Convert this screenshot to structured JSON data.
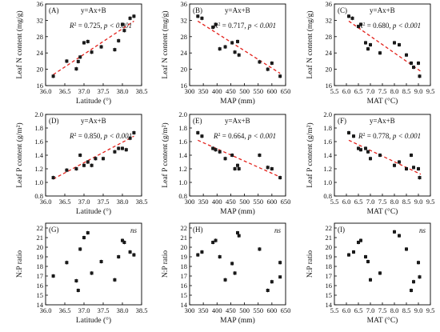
{
  "figure": {
    "colors": {
      "points": "#1a1a1a",
      "fit": "#e3221c",
      "axis": "#000000"
    }
  },
  "chart_data": [
    {
      "type": "scatter",
      "panel": "(A)",
      "equation": "y=Ax+B",
      "r2": "0.725",
      "p": "p < 0.001",
      "fit": true,
      "xlabel": "Latitude (°)",
      "ylabel": "Leaf N content (mg/g)",
      "xlim": [
        36.0,
        38.5
      ],
      "ylim": [
        16,
        36
      ],
      "xticks": [
        "36.0",
        "36.5",
        "37.0",
        "37.5",
        "38.0",
        "38.5"
      ],
      "yticks": [
        "16",
        "20",
        "24",
        "28",
        "32",
        "36"
      ],
      "x": [
        36.2,
        36.55,
        36.8,
        36.85,
        36.9,
        37.0,
        37.1,
        37.2,
        37.45,
        37.8,
        37.9,
        38.0,
        38.05,
        38.2,
        38.3
      ],
      "y": [
        18.3,
        22.0,
        20.1,
        21.9,
        23.0,
        26.5,
        26.8,
        24.2,
        25.5,
        24.8,
        27.0,
        31.0,
        29.5,
        32.5,
        33.0
      ],
      "fit_line": [
        [
          36.2,
          18.7
        ],
        [
          38.3,
          31.8
        ]
      ]
    },
    {
      "type": "scatter",
      "panel": "(B)",
      "equation": "y=Ax+B",
      "r2": "0.717",
      "p": "p < 0.001",
      "fit": true,
      "xlabel": "MAP (mm)",
      "ylabel": "Leaf N content (mg/g)",
      "xlim": [
        300,
        650
      ],
      "ylim": [
        16,
        36
      ],
      "xticks": [
        "300",
        "350",
        "400",
        "450",
        "500",
        "550",
        "600",
        "650"
      ],
      "yticks": [
        "16",
        "20",
        "24",
        "28",
        "32",
        "36"
      ],
      "x": [
        330,
        345,
        385,
        395,
        410,
        430,
        455,
        465,
        475,
        480,
        555,
        585,
        600,
        630
      ],
      "y": [
        33.0,
        32.5,
        30.3,
        31.0,
        25.0,
        25.5,
        26.5,
        24.2,
        26.8,
        23.5,
        21.8,
        20.0,
        21.5,
        18.3
      ],
      "fit_line": [
        [
          330,
          31.8
        ],
        [
          630,
          19.0
        ]
      ]
    },
    {
      "type": "scatter",
      "panel": "(C)",
      "equation": "y=Ax+B",
      "r2": "0.680",
      "p": "p < 0.001",
      "fit": true,
      "xlabel": "MAT (°C)",
      "ylabel": "Leaf N content (mg/g)",
      "xlim": [
        5.5,
        9.5
      ],
      "ylim": [
        16,
        36
      ],
      "xticks": [
        "5.5",
        "6.0",
        "6.5",
        "7.0",
        "7.5",
        "8.0",
        "8.5",
        "9.0",
        "9.5"
      ],
      "yticks": [
        "16",
        "20",
        "24",
        "28",
        "32",
        "36"
      ],
      "x": [
        6.1,
        6.25,
        6.5,
        6.6,
        6.8,
        6.9,
        7.0,
        7.4,
        8.0,
        8.2,
        8.5,
        8.7,
        8.8,
        9.0,
        9.05
      ],
      "y": [
        33.0,
        32.5,
        30.5,
        31.0,
        26.5,
        25.0,
        26.0,
        24.0,
        26.5,
        26.0,
        23.5,
        21.5,
        20.5,
        21.5,
        18.3
      ],
      "fit_line": [
        [
          6.1,
          31.8
        ],
        [
          9.1,
          19.5
        ]
      ]
    },
    {
      "type": "scatter",
      "panel": "(D)",
      "equation": "y=Ax+B",
      "r2": "0.850",
      "p": "p < 0.001",
      "fit": true,
      "xlabel": "Latitude (°)",
      "ylabel": "Leaf P content (g/m²)",
      "xlim": [
        36.0,
        38.5
      ],
      "ylim": [
        0.8,
        2.0
      ],
      "xticks": [
        "36.0",
        "36.5",
        "37.0",
        "37.5",
        "38.0",
        "38.5"
      ],
      "yticks": [
        "0.8",
        "1.0",
        "1.2",
        "1.4",
        "1.6",
        "1.8",
        "2.0"
      ],
      "x": [
        36.2,
        36.55,
        36.8,
        36.9,
        37.0,
        37.1,
        37.2,
        37.3,
        37.5,
        37.8,
        37.9,
        38.0,
        38.1,
        38.2,
        38.3
      ],
      "y": [
        1.07,
        1.18,
        1.2,
        1.4,
        1.25,
        1.3,
        1.25,
        1.35,
        1.35,
        1.45,
        1.5,
        1.5,
        1.48,
        1.65,
        1.73
      ],
      "fit_line": [
        [
          36.2,
          1.05
        ],
        [
          38.3,
          1.68
        ]
      ]
    },
    {
      "type": "scatter",
      "panel": "(E)",
      "equation": "y=Ax+B",
      "r2": "0.664",
      "p": "p < 0.001",
      "fit": true,
      "xlabel": "MAP (mm)",
      "ylabel": "Leaf P content (g/m²)",
      "xlim": [
        300,
        650
      ],
      "ylim": [
        0.8,
        2.0
      ],
      "xticks": [
        "300",
        "350",
        "400",
        "450",
        "500",
        "550",
        "600",
        "650"
      ],
      "yticks": [
        "0.8",
        "1.0",
        "1.2",
        "1.4",
        "1.6",
        "1.8",
        "2.0"
      ],
      "x": [
        330,
        345,
        385,
        395,
        410,
        430,
        455,
        465,
        475,
        480,
        555,
        585,
        600,
        630
      ],
      "y": [
        1.73,
        1.68,
        1.5,
        1.48,
        1.45,
        1.35,
        1.4,
        1.2,
        1.25,
        1.2,
        1.4,
        1.22,
        1.2,
        1.07
      ],
      "fit_line": [
        [
          330,
          1.62
        ],
        [
          630,
          1.08
        ]
      ]
    },
    {
      "type": "scatter",
      "panel": "(F)",
      "equation": "y=Ax+B",
      "r2": "0.778",
      "p": "p < 0.001",
      "fit": true,
      "xlabel": "MAT (°C)",
      "ylabel": "Leaf P content (g/m²)",
      "xlim": [
        5.5,
        9.5
      ],
      "ylim": [
        0.8,
        2.0
      ],
      "xticks": [
        "5.5",
        "6.0",
        "6.5",
        "7.0",
        "7.5",
        "8.0",
        "8.5",
        "9.0",
        "9.5"
      ],
      "yticks": [
        "0.8",
        "1.0",
        "1.2",
        "1.4",
        "1.6",
        "1.8",
        "2.0"
      ],
      "x": [
        6.1,
        6.3,
        6.5,
        6.6,
        6.8,
        6.9,
        7.0,
        7.4,
        8.0,
        8.2,
        8.5,
        8.7,
        8.8,
        9.0,
        9.05
      ],
      "y": [
        1.73,
        1.68,
        1.5,
        1.48,
        1.5,
        1.45,
        1.35,
        1.4,
        1.25,
        1.3,
        1.2,
        1.4,
        1.22,
        1.2,
        1.07
      ],
      "fit_line": [
        [
          6.1,
          1.62
        ],
        [
          9.1,
          1.12
        ]
      ]
    },
    {
      "type": "scatter",
      "panel": "(G)",
      "annotation": "ns",
      "fit": false,
      "xlabel": "Latitude (°)",
      "ylabel": "N:P ratio",
      "xlim": [
        36.0,
        38.5
      ],
      "ylim": [
        14,
        22.5
      ],
      "xticks": [
        "36.0",
        "36.5",
        "37.0",
        "37.5",
        "38.0",
        "38.5"
      ],
      "yticks": [
        "14",
        "15",
        "16",
        "17",
        "18",
        "19",
        "20",
        "21",
        "22"
      ],
      "x": [
        36.2,
        36.55,
        36.8,
        36.85,
        36.9,
        37.0,
        37.1,
        37.2,
        37.45,
        37.8,
        37.9,
        38.0,
        38.05,
        38.2,
        38.3
      ],
      "y": [
        17.0,
        18.4,
        16.5,
        15.5,
        19.8,
        21.0,
        21.5,
        17.3,
        18.5,
        16.6,
        19.0,
        20.7,
        20.5,
        19.5,
        19.2
      ]
    },
    {
      "type": "scatter",
      "panel": "(H)",
      "annotation": "ns",
      "fit": false,
      "xlabel": "MAP (mm)",
      "ylabel": "N:P ratio",
      "xlim": [
        300,
        650
      ],
      "ylim": [
        14,
        22.5
      ],
      "xticks": [
        "300",
        "350",
        "400",
        "450",
        "500",
        "550",
        "600",
        "650"
      ],
      "yticks": [
        "14",
        "15",
        "16",
        "17",
        "18",
        "19",
        "20",
        "21",
        "22"
      ],
      "x": [
        330,
        345,
        385,
        395,
        410,
        430,
        455,
        465,
        475,
        480,
        555,
        585,
        600,
        630
      ],
      "y": [
        19.2,
        19.5,
        20.5,
        20.7,
        19.0,
        16.6,
        18.3,
        17.3,
        21.5,
        21.2,
        19.8,
        15.5,
        16.4,
        18.4
      ],
      "x_extra": [
        630
      ],
      "y_extra": [
        16.9
      ]
    },
    {
      "type": "scatter",
      "panel": "(I)",
      "annotation": "ns",
      "fit": false,
      "xlabel": "MAT (°C)",
      "ylabel": "N:P ratio",
      "xlim": [
        5.5,
        9.5
      ],
      "ylim": [
        14,
        22.5
      ],
      "xticks": [
        "5.5",
        "6.0",
        "6.5",
        "7.0",
        "7.5",
        "8.0",
        "8.5",
        "9.0",
        "9.5"
      ],
      "yticks": [
        "14",
        "15",
        "16",
        "17",
        "18",
        "19",
        "20",
        "21",
        "22"
      ],
      "x": [
        6.1,
        6.3,
        6.5,
        6.6,
        6.8,
        6.9,
        7.0,
        7.4,
        8.0,
        8.2,
        8.5,
        8.7,
        8.8,
        9.0,
        9.05
      ],
      "y": [
        19.2,
        19.5,
        20.5,
        20.7,
        19.0,
        18.5,
        16.6,
        17.3,
        21.6,
        21.2,
        19.8,
        15.5,
        16.4,
        18.4,
        16.9
      ]
    }
  ]
}
